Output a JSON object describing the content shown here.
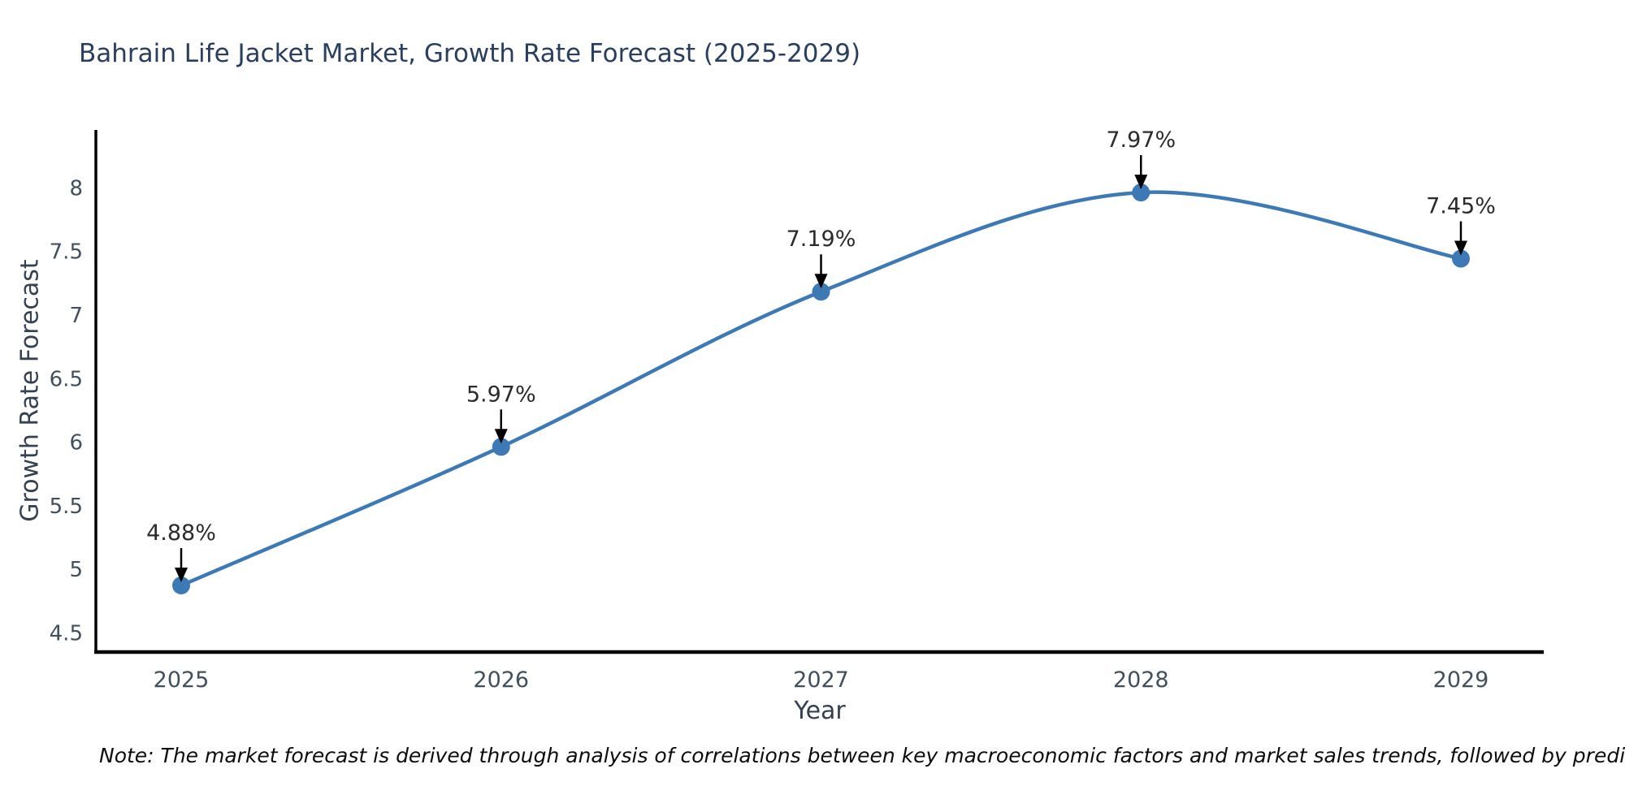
{
  "title": {
    "text": "Bahrain Life Jacket Market, Growth Rate Forecast (2025-2029)"
  },
  "note": {
    "text": "Note: The market forecast is derived through analysis of correlations between key macroeconomic factors and market sales trends, followed by predictive modeling to project future sales"
  },
  "chart_data": {
    "type": "line",
    "title": "Bahrain Life Jacket Market, Growth Rate Forecast (2025-2029)",
    "xlabel": "Year",
    "ylabel": "Growth Rate Forecast",
    "categories": [
      "2025",
      "2026",
      "2027",
      "2028",
      "2029"
    ],
    "values": [
      4.88,
      5.97,
      7.19,
      7.97,
      7.45
    ],
    "point_labels": [
      "4.88%",
      "5.97%",
      "7.19%",
      "7.97%",
      "7.45%"
    ],
    "y_ticks": [
      "4.5",
      "5",
      "5.5",
      "6",
      "6.5",
      "7",
      "7.5",
      "8"
    ],
    "y_tick_values": [
      4.5,
      5,
      5.5,
      6,
      6.5,
      7,
      7.5,
      8
    ],
    "ylim": [
      4.36,
      8.46
    ],
    "grid": false,
    "legend_position": "none",
    "curve": "smooth-spline",
    "annotation_style": "value labels with downward black arrows above each data point",
    "colors": {
      "line": "#3d7ab5",
      "marker": "#3d7ab5",
      "arrow": "#000000",
      "title": "#2a3f5f",
      "axis": "#000000",
      "tick_label": "#42505e",
      "axis_label": "#36414f",
      "annotation_label": "#2b2b2b",
      "background": "#ffffff"
    }
  }
}
